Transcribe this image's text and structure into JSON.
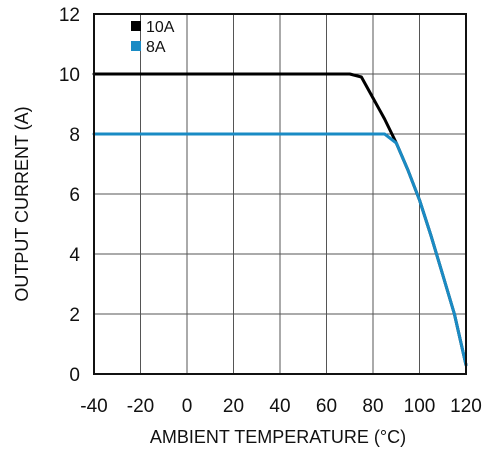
{
  "chart_data": {
    "type": "line",
    "title": "",
    "xlabel": "AMBIENT TEMPERATURE (°C)",
    "ylabel": "OUTPUT CURRENT (A)",
    "xlim": [
      -40,
      120
    ],
    "ylim": [
      0,
      12
    ],
    "xticks": [
      -40,
      -20,
      0,
      20,
      40,
      60,
      80,
      100,
      120
    ],
    "yticks": [
      0,
      2,
      4,
      6,
      8,
      10,
      12
    ],
    "grid": true,
    "legend": "top-left",
    "series": [
      {
        "name": "10A",
        "color": "#000000",
        "points": [
          [
            -40,
            10
          ],
          [
            70,
            10
          ],
          [
            75,
            9.9
          ],
          [
            80,
            9.2
          ],
          [
            85,
            8.5
          ],
          [
            90,
            7.7
          ],
          [
            95,
            6.8
          ],
          [
            100,
            5.8
          ],
          [
            105,
            4.6
          ],
          [
            110,
            3.3
          ],
          [
            115,
            2.0
          ],
          [
            120,
            0.3
          ]
        ]
      },
      {
        "name": "8A",
        "color": "#1a8bc4",
        "points": [
          [
            -40,
            8
          ],
          [
            85,
            8
          ],
          [
            90,
            7.7
          ],
          [
            95,
            6.8
          ],
          [
            100,
            5.8
          ],
          [
            105,
            4.6
          ],
          [
            110,
            3.3
          ],
          [
            115,
            2.0
          ],
          [
            120,
            0.3
          ]
        ]
      }
    ]
  }
}
